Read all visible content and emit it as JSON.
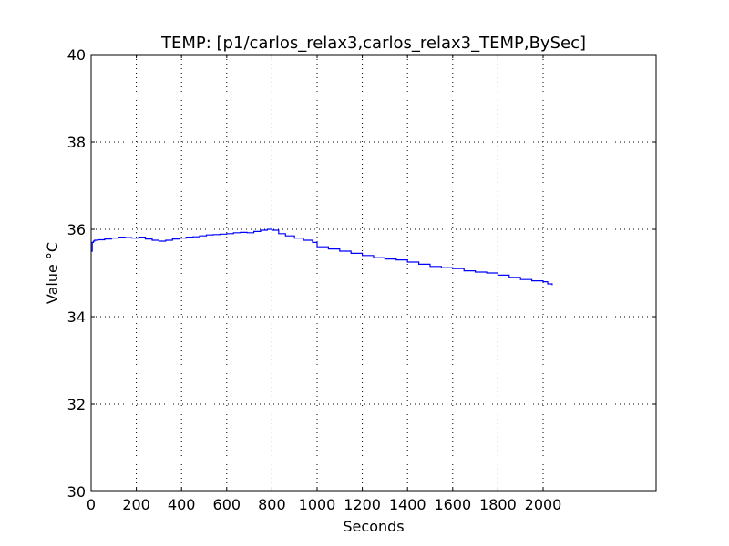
{
  "chart_data": {
    "type": "line",
    "title": "TEMP: [p1/carlos_relax3,carlos_relax3_TEMP,BySec]",
    "xlabel": "Seconds",
    "ylabel": "Value °C",
    "xlim": [
      0,
      2500
    ],
    "ylim": [
      30,
      40
    ],
    "xticks": [
      0,
      200,
      400,
      600,
      800,
      1000,
      1200,
      1400,
      1600,
      1800,
      2000
    ],
    "yticks": [
      30,
      32,
      34,
      36,
      38,
      40
    ],
    "grid": true,
    "colors": {
      "line": "#0000ff",
      "grid": "#000000",
      "axes": "#000000"
    },
    "series": [
      {
        "x": [
          0,
          5,
          10,
          15,
          30,
          60,
          90,
          120,
          150,
          180,
          210,
          240,
          270,
          300,
          330,
          360,
          390,
          420,
          450,
          480,
          510,
          540,
          570,
          600,
          630,
          660,
          690,
          720,
          750,
          780,
          800,
          830,
          860,
          900,
          940,
          980,
          1000,
          1050,
          1100,
          1150,
          1200,
          1250,
          1300,
          1350,
          1400,
          1450,
          1500,
          1550,
          1600,
          1650,
          1700,
          1750,
          1800,
          1850,
          1900,
          1950,
          2000,
          2020,
          2040
        ],
        "values": [
          35.5,
          35.7,
          35.73,
          35.75,
          35.76,
          35.78,
          35.8,
          35.82,
          35.81,
          35.8,
          35.82,
          35.78,
          35.75,
          35.73,
          35.75,
          35.78,
          35.8,
          35.82,
          35.83,
          35.85,
          35.87,
          35.88,
          35.89,
          35.9,
          35.92,
          35.93,
          35.92,
          35.95,
          35.98,
          36.0,
          35.98,
          35.9,
          35.85,
          35.8,
          35.75,
          35.7,
          35.6,
          35.55,
          35.5,
          35.45,
          35.4,
          35.35,
          35.32,
          35.3,
          35.25,
          35.2,
          35.15,
          35.12,
          35.1,
          35.05,
          35.02,
          35.0,
          34.95,
          34.9,
          34.85,
          34.82,
          34.8,
          34.75,
          34.72
        ]
      }
    ]
  }
}
